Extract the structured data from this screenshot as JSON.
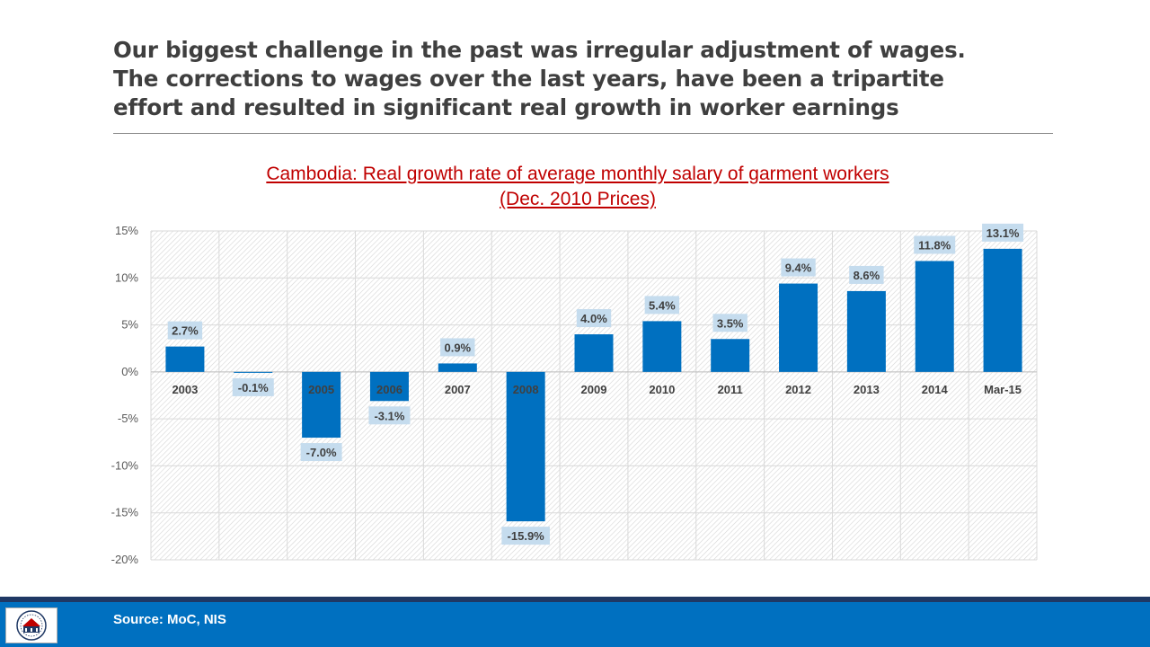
{
  "headline": {
    "line1": "Our biggest challenge in the past was irregular adjustment of wages.",
    "line2": "The corrections to wages over the last years, have been a tripartite",
    "line3": "effort and resulted in significant real growth in worker earnings"
  },
  "chart_data": {
    "type": "bar",
    "title": "Cambodia: Real growth rate of average monthly salary of garment workers",
    "subtitle": "(Dec. 2010 Prices)",
    "categories": [
      "2003",
      "2004",
      "2005",
      "2006",
      "2007",
      "2008",
      "2009",
      "2010",
      "2011",
      "2012",
      "2013",
      "2014",
      "Mar-15"
    ],
    "values": [
      2.7,
      -0.1,
      -7.0,
      -3.1,
      0.9,
      -15.9,
      4.0,
      5.4,
      3.5,
      9.4,
      8.6,
      11.8,
      13.1
    ],
    "data_labels": [
      "2.7%",
      "-0.1%",
      "-7.0%",
      "-3.1%",
      "0.9%",
      "-15.9%",
      "4.0%",
      "5.4%",
      "3.5%",
      "9.4%",
      "8.6%",
      "11.8%",
      "13.1%"
    ],
    "yticks": [
      15,
      10,
      5,
      0,
      -5,
      -10,
      -15,
      -20
    ],
    "ytick_labels": [
      "15%",
      "10%",
      "5%",
      "0%",
      "-5%",
      "-10%",
      "-15%",
      "-20%"
    ],
    "ylim": [
      -20,
      15
    ],
    "xlabel": "",
    "ylabel": "",
    "grid": true,
    "bar_color": "#0070c0",
    "label_bg_color": "#c5dcee",
    "label_text_color": "#404040"
  },
  "footer": {
    "source": "Source: MoC, NIS"
  },
  "colors": {
    "headline": "#3f3f3f",
    "chart_title": "#c00000",
    "footer_bar": "#0070c0",
    "footer_line": "#1f3864"
  },
  "logo": {
    "icon": "federation-logo-icon"
  }
}
